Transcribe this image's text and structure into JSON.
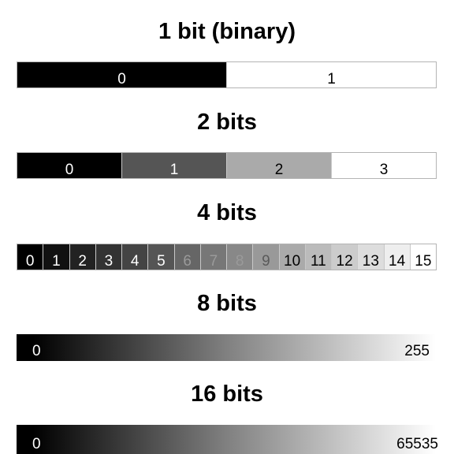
{
  "sections": [
    {
      "title": "1 bit (binary)",
      "levels": [
        "0",
        "1"
      ]
    },
    {
      "title": "2 bits",
      "levels": [
        "0",
        "1",
        "2",
        "3"
      ]
    },
    {
      "title": "4 bits",
      "levels": [
        "0",
        "1",
        "2",
        "3",
        "4",
        "5",
        "6",
        "7",
        "8",
        "9",
        "10",
        "11",
        "12",
        "13",
        "14",
        "15"
      ]
    }
  ],
  "gradients": [
    {
      "title": "8 bits",
      "min_label": "0",
      "max_label": "255"
    },
    {
      "title": "16 bits",
      "min_label": "0",
      "max_label": "65535"
    }
  ]
}
